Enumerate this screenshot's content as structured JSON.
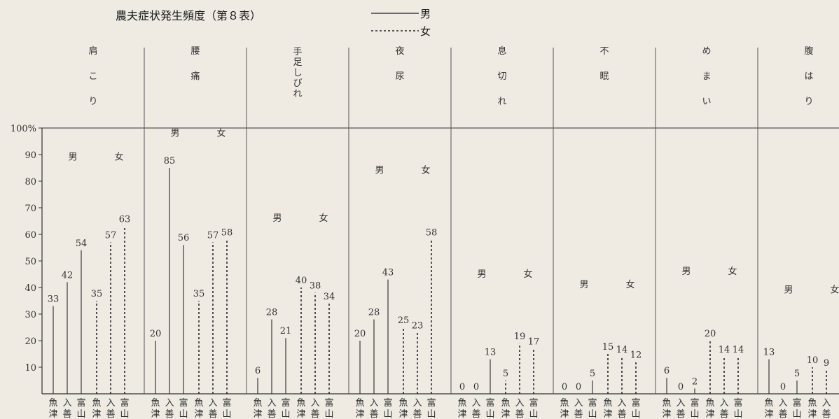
{
  "chart_data": {
    "type": "bar",
    "title": "農夫症状発生頻度（第８表）",
    "legend": [
      {
        "label": "男",
        "line": "solid"
      },
      {
        "label": "女",
        "line": "dashed"
      }
    ],
    "ylim": [
      0,
      100
    ],
    "yticks": [
      "10",
      "20",
      "30",
      "40",
      "50",
      "60",
      "70",
      "80",
      "90",
      "100%"
    ],
    "gender_labels": [
      "男",
      "女"
    ],
    "sites": [
      [
        "魚",
        "津"
      ],
      [
        "入",
        "善"
      ],
      [
        "富",
        "山"
      ]
    ],
    "categories": [
      {
        "label": "肩こり",
        "chars": [
          "肩",
          "こ",
          "り"
        ],
        "male": [
          33,
          42,
          54
        ],
        "female": [
          35,
          57,
          63
        ]
      },
      {
        "label": "腰痛",
        "chars": [
          "腰",
          "痛"
        ],
        "male": [
          20,
          85,
          56
        ],
        "female": [
          35,
          57,
          58
        ]
      },
      {
        "label": "手足しびれ",
        "chars": [
          "手",
          "足",
          "し",
          "び",
          "れ"
        ],
        "male": [
          6,
          28,
          21
        ],
        "female": [
          40,
          38,
          34
        ]
      },
      {
        "label": "夜尿",
        "chars": [
          "夜",
          "尿"
        ],
        "male": [
          20,
          28,
          43
        ],
        "female": [
          25,
          23,
          58
        ]
      },
      {
        "label": "息切れ",
        "chars": [
          "息",
          "切",
          "れ"
        ],
        "male": [
          0,
          0,
          13
        ],
        "female": [
          5,
          19,
          17
        ]
      },
      {
        "label": "不眠",
        "chars": [
          "不",
          "眠"
        ],
        "male": [
          0,
          0,
          5
        ],
        "female": [
          15,
          14,
          12
        ]
      },
      {
        "label": "めまい",
        "chars": [
          "め",
          "ま",
          "い"
        ],
        "male": [
          6,
          0,
          2
        ],
        "female": [
          20,
          14,
          14
        ]
      },
      {
        "label": "腹はり",
        "chars": [
          "腹",
          "は",
          "り"
        ],
        "male": [
          13,
          0,
          5
        ],
        "female": [
          10,
          9,
          null
        ]
      }
    ]
  }
}
